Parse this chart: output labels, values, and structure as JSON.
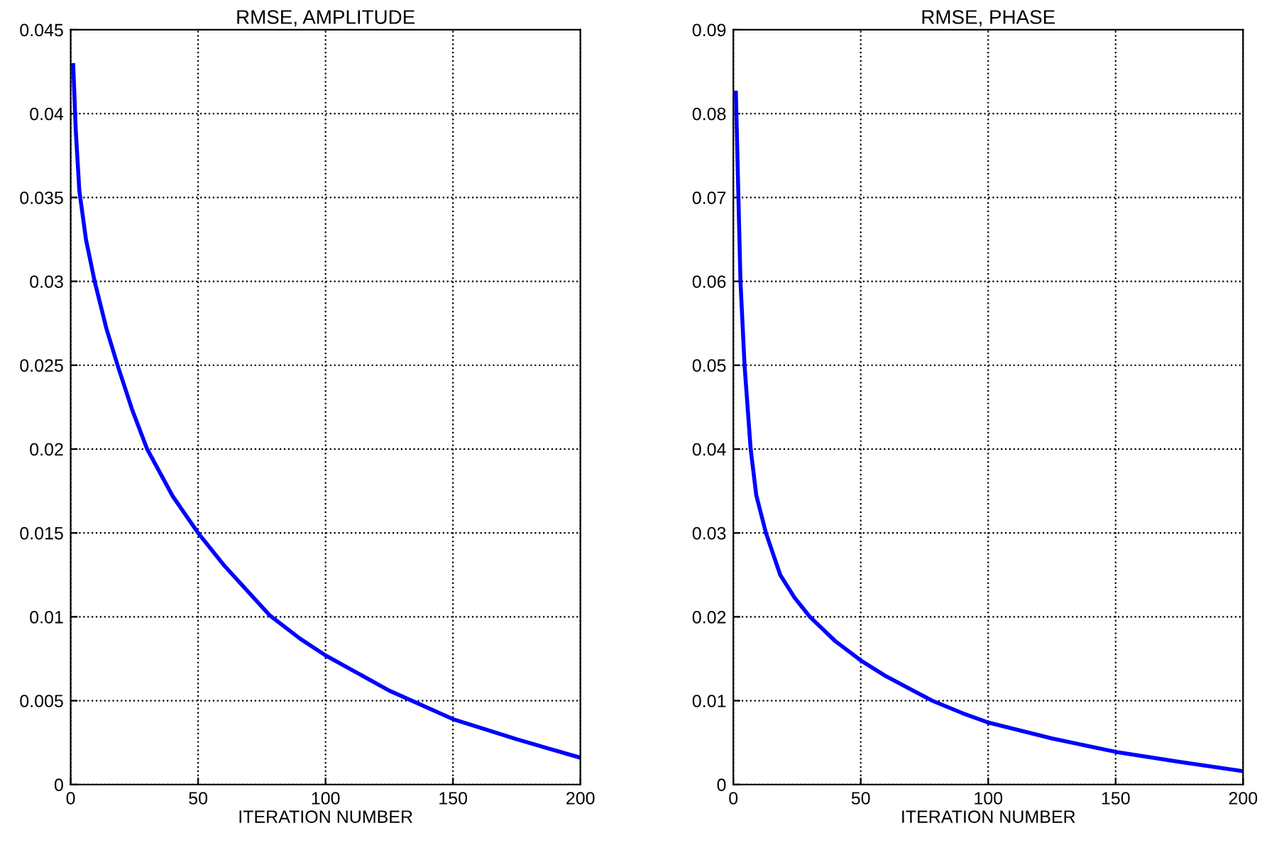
{
  "chart_data": [
    {
      "type": "line",
      "title": "RMSE, AMPLITUDE",
      "xlabel": "ITERATION NUMBER",
      "xlim": [
        0,
        200
      ],
      "xticks": [
        0,
        50,
        100,
        150,
        200
      ],
      "ylim": [
        0,
        0.045
      ],
      "yticks": [
        0,
        0.005,
        0.01,
        0.015,
        0.02,
        0.025,
        0.03,
        0.035,
        0.04,
        0.045
      ],
      "grid": true,
      "series": [
        {
          "color": "#0000ff",
          "x": [
            1,
            2,
            3.4,
            6,
            9.4,
            14,
            18.4,
            24,
            30,
            40,
            50,
            60,
            78,
            90,
            100,
            125,
            150,
            175,
            200
          ],
          "values": [
            0.0429,
            0.039,
            0.0354,
            0.0325,
            0.03,
            0.0272,
            0.025,
            0.0224,
            0.02,
            0.0172,
            0.015,
            0.0131,
            0.0101,
            0.0087,
            0.0077,
            0.0056,
            0.0039,
            0.0027,
            0.0016
          ]
        }
      ]
    },
    {
      "type": "line",
      "title": "RMSE, PHASE",
      "xlabel": "ITERATION NUMBER",
      "xlim": [
        0,
        200
      ],
      "xticks": [
        0,
        50,
        100,
        150,
        200
      ],
      "ylim": [
        0,
        0.09
      ],
      "yticks": [
        0,
        0.01,
        0.02,
        0.03,
        0.04,
        0.05,
        0.06,
        0.07,
        0.08,
        0.09
      ],
      "grid": true,
      "series": [
        {
          "color": "#0000ff",
          "x": [
            1,
            2,
            2.8,
            4.4,
            6.8,
            9,
            12.8,
            18.4,
            24,
            30,
            40,
            50,
            60,
            78,
            90,
            100,
            125,
            150,
            175,
            200
          ],
          "values": [
            0.0825,
            0.07,
            0.06,
            0.05,
            0.04,
            0.0345,
            0.03,
            0.025,
            0.0223,
            0.02,
            0.0171,
            0.0148,
            0.0129,
            0.01,
            0.0085,
            0.0074,
            0.0055,
            0.0039,
            0.0027,
            0.0016
          ]
        }
      ]
    }
  ]
}
